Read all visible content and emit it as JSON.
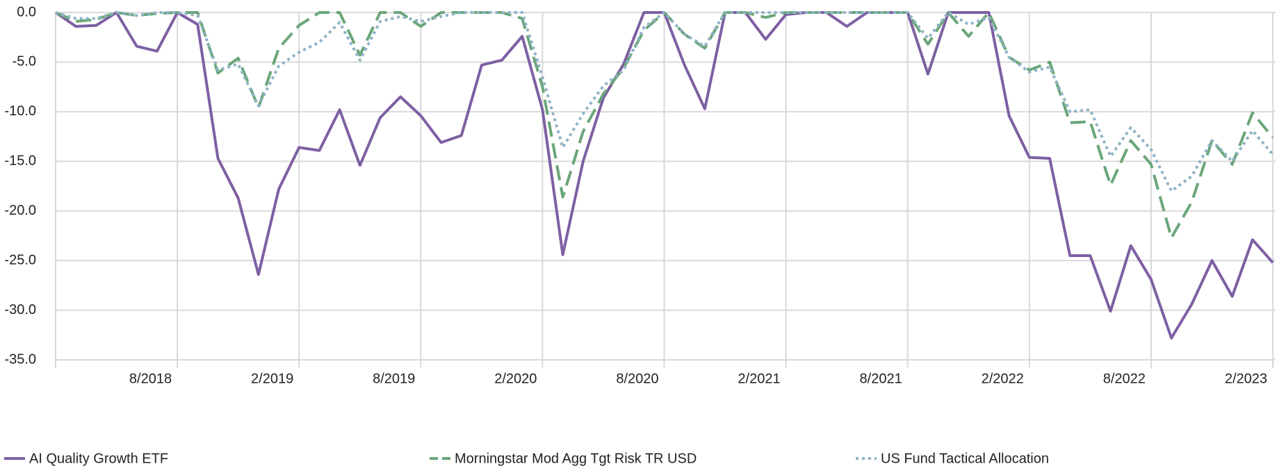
{
  "chart_data": {
    "type": "line",
    "categories": [
      null,
      null,
      null,
      null,
      null,
      null,
      "8/2018",
      null,
      null,
      null,
      null,
      null,
      "2/2019",
      null,
      null,
      null,
      null,
      null,
      "8/2019",
      null,
      null,
      null,
      null,
      null,
      "2/2020",
      null,
      null,
      null,
      null,
      null,
      "8/2020",
      null,
      null,
      null,
      null,
      null,
      "2/2021",
      null,
      null,
      null,
      null,
      null,
      "8/2021",
      null,
      null,
      null,
      null,
      null,
      "2/2022",
      null,
      null,
      null,
      null,
      null,
      "8/2022",
      null,
      null,
      null,
      null,
      null,
      "2/2023"
    ],
    "series": [
      {
        "name": "AI Quality Growth ETF",
        "color": "#7e5fa3",
        "dash": "solid",
        "values": [
          0,
          -1.4,
          -1.3,
          0,
          -3.4,
          -3.9,
          0,
          -1.2,
          -14.7,
          -18.7,
          -26.4,
          -17.8,
          -13.6,
          -13.9,
          -9.8,
          -15.4,
          -10.6,
          -8.5,
          -10.4,
          -13.1,
          -12.4,
          -5.3,
          -4.8,
          -2.4,
          -9.8,
          -24.4,
          -15.0,
          -8.6,
          -5.2,
          0,
          0,
          -5.3,
          -9.7,
          0,
          0,
          -2.7,
          -0.2,
          0,
          0,
          -1.4,
          0,
          0,
          0,
          -6.2,
          0,
          0,
          0,
          -10.4,
          -14.6,
          -14.7,
          -24.5,
          -24.5,
          -30.1,
          -23.5,
          -26.9,
          -32.8,
          -29.4,
          -25.0,
          -28.6,
          -22.9,
          -25.2
        ]
      },
      {
        "name": "Morningstar Mod Agg Tgt Risk TR USD",
        "color": "#6aa67a",
        "dash": "dashed",
        "values": [
          0,
          -0.9,
          -0.7,
          0,
          -0.3,
          -0.1,
          0,
          0,
          -6.1,
          -4.6,
          -9.6,
          -3.6,
          -1.3,
          0,
          0,
          -4.3,
          0,
          0,
          -1.4,
          0,
          0,
          0,
          0,
          -0.6,
          -7.5,
          -18.6,
          -12.0,
          -8.2,
          -5.6,
          -1.8,
          0,
          -2.2,
          -3.6,
          0,
          0,
          -0.5,
          0,
          0,
          0,
          0,
          0,
          0,
          0,
          -3.2,
          0,
          -2.4,
          0,
          -4.5,
          -5.8,
          -5.0,
          -11.1,
          -11.0,
          -17.4,
          -12.9,
          -15.3,
          -22.7,
          -19.1,
          -12.9,
          -15.3,
          -10.1,
          -12.6
        ]
      },
      {
        "name": "US Fund Tactical Allocation",
        "color": "#8fb3c6",
        "dash": "dotted",
        "values": [
          0,
          -0.6,
          -0.6,
          0,
          -0.3,
          0,
          0,
          -0.3,
          -5.8,
          -5.2,
          -9.4,
          -5.4,
          -4.0,
          -3.0,
          -1.0,
          -4.8,
          -0.9,
          -0.4,
          -0.9,
          -0.4,
          0,
          0,
          0,
          0,
          -6.5,
          -13.6,
          -10.2,
          -7.4,
          -5.8,
          -1.5,
          0,
          -2.2,
          -3.4,
          0,
          0,
          0,
          0,
          0,
          0,
          0,
          0,
          0,
          0,
          -2.6,
          0,
          -1.2,
          -0.5,
          -4.5,
          -6.0,
          -5.5,
          -10.0,
          -9.8,
          -14.5,
          -11.6,
          -13.8,
          -18.0,
          -16.5,
          -12.9,
          -15.0,
          -11.9,
          -14.3
        ]
      }
    ],
    "ylim": [
      -35,
      0
    ],
    "yticks": [
      {
        "value": 0,
        "label": "0.0"
      },
      {
        "value": -5,
        "label": "-5.0"
      },
      {
        "value": -10,
        "label": "-10.0"
      },
      {
        "value": -15,
        "label": "-15.0"
      },
      {
        "value": -20,
        "label": "-20.0"
      },
      {
        "value": -25,
        "label": "-25.0"
      },
      {
        "value": -30,
        "label": "-30.0"
      },
      {
        "value": -35,
        "label": "-35.0"
      }
    ],
    "grid": true,
    "legend": "bottom"
  }
}
